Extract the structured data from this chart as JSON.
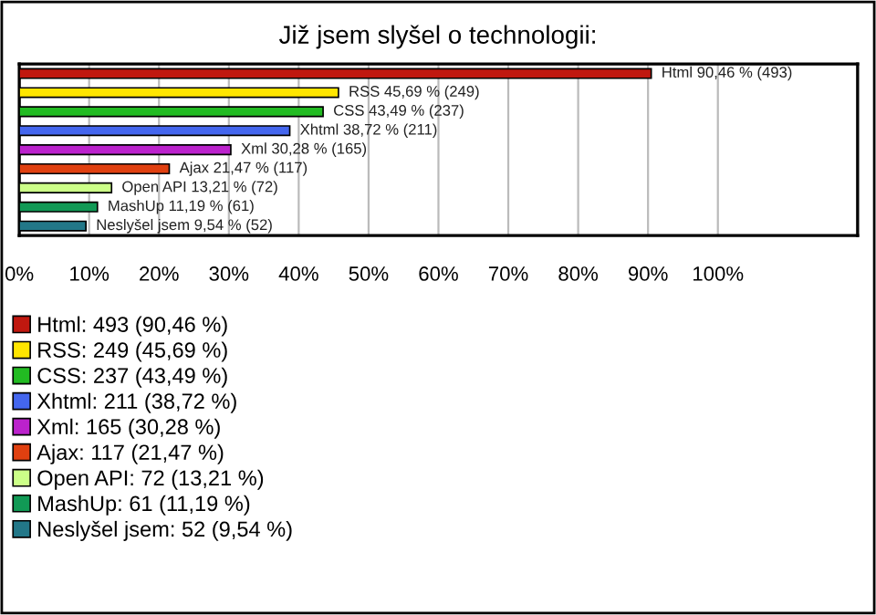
{
  "chart_data": {
    "type": "bar",
    "orientation": "horizontal",
    "title": "Již jsem slyšel o technologii:",
    "categories": [
      null,
      null,
      null,
      null,
      null,
      null,
      null,
      null,
      null
    ],
    "series": [
      {
        "name": "Html: 493 (90,46 %)",
        "color": "#c0180f",
        "values": [
          90.46,
          null,
          null,
          null,
          null,
          null,
          null,
          null,
          null
        ],
        "value_labels": [
          "Html 90,46 % (493)",
          null,
          null,
          null,
          null,
          null,
          null,
          null,
          null
        ]
      },
      {
        "name": "RSS: 249 (45,69 %)",
        "color": "#ffe600",
        "values": [
          null,
          45.69,
          null,
          null,
          null,
          null,
          null,
          null,
          null
        ],
        "value_labels": [
          null,
          "RSS 45,69 % (249)",
          null,
          null,
          null,
          null,
          null,
          null,
          null
        ]
      },
      {
        "name": "CSS: 237 (43,49 %)",
        "color": "#22bb22",
        "values": [
          null,
          null,
          43.49,
          null,
          null,
          null,
          null,
          null,
          null
        ],
        "value_labels": [
          null,
          null,
          "CSS 43,49 % (237)",
          null,
          null,
          null,
          null,
          null,
          null
        ]
      },
      {
        "name": "Xhtml: 211 (38,72 %)",
        "color": "#4466ee",
        "values": [
          null,
          null,
          null,
          38.72,
          null,
          null,
          null,
          null,
          null
        ],
        "value_labels": [
          null,
          null,
          null,
          "Xhtml 38,72 % (211)",
          null,
          null,
          null,
          null,
          null
        ]
      },
      {
        "name": "Xml: 165 (30,28 %)",
        "color": "#bb22cc",
        "values": [
          null,
          null,
          null,
          null,
          30.28,
          null,
          null,
          null,
          null
        ],
        "value_labels": [
          null,
          null,
          null,
          null,
          "Xml 30,28 % (165)",
          null,
          null,
          null,
          null
        ]
      },
      {
        "name": "Ajax: 117 (21,47 %)",
        "color": "#e04010",
        "values": [
          null,
          null,
          null,
          null,
          null,
          21.47,
          null,
          null,
          null
        ],
        "value_labels": [
          null,
          null,
          null,
          null,
          null,
          "Ajax 21,47 % (117)",
          null,
          null,
          null
        ]
      },
      {
        "name": "Open API: 72 (13,21 %)",
        "color": "#ccff88",
        "values": [
          null,
          null,
          null,
          null,
          null,
          null,
          13.21,
          null,
          null
        ],
        "value_labels": [
          null,
          null,
          null,
          null,
          null,
          null,
          "Open API 13,21 % (72)",
          null,
          null
        ]
      },
      {
        "name": "MashUp: 61 (11,19 %)",
        "color": "#119955",
        "values": [
          null,
          null,
          null,
          null,
          null,
          null,
          null,
          11.19,
          null
        ],
        "value_labels": [
          null,
          null,
          null,
          null,
          null,
          null,
          null,
          "MashUp 11,19 % (61)",
          null
        ]
      },
      {
        "name": "Neslyšel jsem: 52 (9,54 %)",
        "color": "#227788",
        "values": [
          null,
          null,
          null,
          null,
          null,
          null,
          null,
          null,
          9.54
        ],
        "value_labels": [
          null,
          null,
          null,
          null,
          null,
          null,
          null,
          null,
          "Neslyšel jsem 9,54 % (52)"
        ]
      }
    ],
    "xlim": [
      0,
      120
    ],
    "xticks": [
      {
        "value": 0,
        "label": "0%"
      },
      {
        "value": 10,
        "label": "10%"
      },
      {
        "value": 20,
        "label": "20%"
      },
      {
        "value": 30,
        "label": "30%"
      },
      {
        "value": 40,
        "label": "40%"
      },
      {
        "value": 50,
        "label": "50%"
      },
      {
        "value": 60,
        "label": "60%"
      },
      {
        "value": 70,
        "label": "70%"
      },
      {
        "value": 80,
        "label": "80%"
      },
      {
        "value": 90,
        "label": "90%"
      },
      {
        "value": 100,
        "label": "100%"
      }
    ],
    "grid": "x",
    "legend": "bottom left"
  }
}
